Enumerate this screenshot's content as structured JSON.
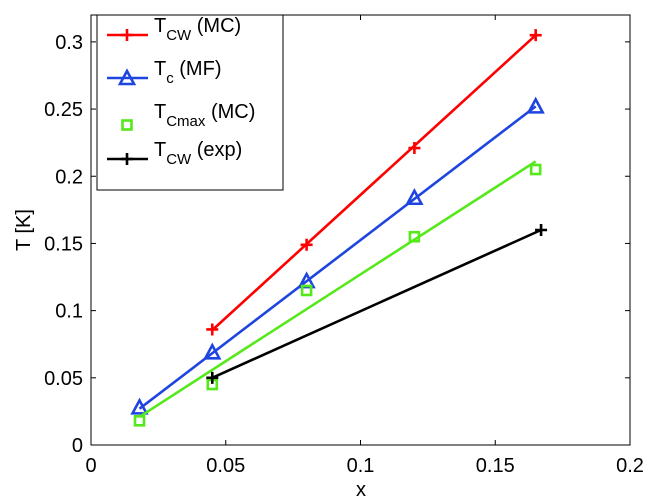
{
  "chart_data": {
    "type": "line",
    "title": "",
    "xlabel": "x",
    "ylabel": "T [K]",
    "xlim": [
      0,
      0.2
    ],
    "ylim": [
      0,
      0.32
    ],
    "xticks": [
      0,
      0.05,
      0.1,
      0.15,
      0.2
    ],
    "xtick_labels": [
      "0",
      "0.05",
      "0.1",
      "0.15",
      "0.2"
    ],
    "yticks": [
      0,
      0.05,
      0.1,
      0.15,
      0.2,
      0.25,
      0.3
    ],
    "ytick_labels": [
      "0",
      "0.05",
      "0.1",
      "0.15",
      "0.2",
      "0.25",
      "0.3"
    ],
    "grid": false,
    "legend_position": "top-left",
    "series": [
      {
        "key": "tcw-mc",
        "name": "T_CW (MC)",
        "label_main": "T",
        "label_sub": "CW",
        "label_rest": " (MC)",
        "color": "#ff0000",
        "marker": "plus",
        "line": "fit",
        "x": [
          0.045,
          0.08,
          0.12,
          0.165
        ],
        "y": [
          0.086,
          0.149,
          0.221,
          0.305
        ]
      },
      {
        "key": "tc-mf",
        "name": "T_c (MF)",
        "label_main": "T",
        "label_sub": "c",
        "label_rest": " (MF)",
        "color": "#1f45e0",
        "marker": "triangle",
        "line": "fit",
        "x": [
          0.018,
          0.045,
          0.08,
          0.12,
          0.165
        ],
        "y": [
          0.028,
          0.069,
          0.122,
          0.184,
          0.252
        ]
      },
      {
        "key": "tcmax-mc",
        "name": "T_Cmax (MC)",
        "label_main": "T",
        "label_sub": "Cmax",
        "label_rest": " (MC)",
        "color": "#55e81a",
        "marker": "square",
        "line": "fit",
        "x": [
          0.018,
          0.045,
          0.08,
          0.12,
          0.165
        ],
        "y": [
          0.018,
          0.045,
          0.115,
          0.155,
          0.205
        ]
      },
      {
        "key": "tcw-exp",
        "name": "T_CW (exp)",
        "label_main": "T",
        "label_sub": "CW",
        "label_rest": " (exp)",
        "color": "#000000",
        "marker": "plus",
        "line": "connect",
        "x": [
          0.045,
          0.167
        ],
        "y": [
          0.05,
          0.16
        ]
      }
    ],
    "fit_lines": [
      {
        "series": "tcw-mc",
        "x": [
          0.045,
          0.165
        ],
        "y": [
          0.0855,
          0.305
        ]
      },
      {
        "series": "tc-mf",
        "x": [
          0.018,
          0.165
        ],
        "y": [
          0.027,
          0.252
        ]
      },
      {
        "series": "tcmax-mc",
        "x": [
          0.018,
          0.165
        ],
        "y": [
          0.021,
          0.211
        ]
      }
    ]
  }
}
